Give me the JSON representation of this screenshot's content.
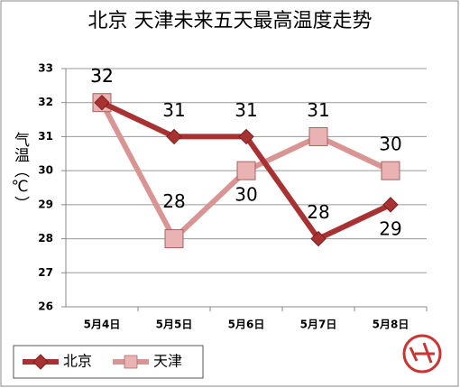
{
  "chart_data": {
    "type": "line",
    "title": "北京 天津未来五天最高温度走势",
    "y_label": "气温（℃）",
    "categories": [
      "5月4日",
      "5月5日",
      "5月6日",
      "5月7日",
      "5月8日"
    ],
    "series": [
      {
        "name": "北京",
        "color": "#a83232",
        "marker": "diamond",
        "values": [
          32,
          31,
          31,
          28,
          29
        ]
      },
      {
        "name": "天津",
        "color": "#d99594",
        "marker": "square",
        "values": [
          32,
          28,
          30,
          31,
          30
        ]
      }
    ],
    "ylim": [
      26,
      33
    ],
    "yticks": [
      26,
      27,
      28,
      29,
      30,
      31,
      32,
      33
    ],
    "grid": true,
    "legend": "bottom-left"
  }
}
